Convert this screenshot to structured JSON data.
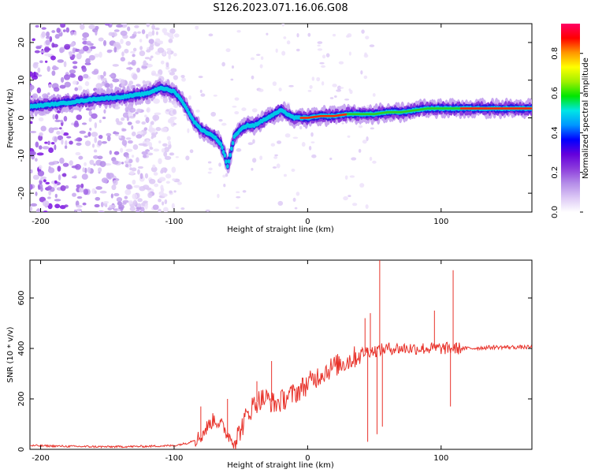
{
  "figure_title": "S126.2023.071.16.06.G08",
  "chart_data": [
    {
      "type": "heatmap",
      "title": "",
      "xlabel": "Height of straight line (km)",
      "ylabel": "Frequency (Hz)",
      "xlim": [
        -208,
        168
      ],
      "ylim": [
        -25,
        25
      ],
      "x_ticks": [
        -200,
        -100,
        0,
        100
      ],
      "y_ticks": [
        -20,
        -10,
        0,
        10,
        20
      ],
      "colorbar": {
        "label": "Normalized spectral amplitude",
        "range": [
          0,
          0.95
        ],
        "ticks": [
          0.0,
          0.2,
          0.4,
          0.6,
          0.8
        ],
        "colormap": [
          "#ffffff",
          "#dcc8f5",
          "#b48ce8",
          "#8c3cdc",
          "#6400dc",
          "#0000ff",
          "#0096ff",
          "#00e6e6",
          "#00e600",
          "#a0f000",
          "#ffff00",
          "#ff9600",
          "#ff0000",
          "#ff0064"
        ]
      },
      "ridge": {
        "x_km": [
          -208,
          -180,
          -160,
          -140,
          -120,
          -110,
          -100,
          -95,
          -90,
          -85,
          -80,
          -75,
          -70,
          -65,
          -62,
          -60,
          -55,
          -50,
          -45,
          -40,
          -35,
          -30,
          -25,
          -20,
          -15,
          -10,
          -5,
          0,
          10,
          20,
          30,
          40,
          50,
          60,
          70,
          80,
          90,
          100,
          110,
          120,
          140,
          168
        ],
        "freq_hz": [
          3,
          4,
          5,
          5.5,
          6.5,
          8,
          7,
          5,
          2,
          -1,
          -3,
          -4,
          -5,
          -7,
          -10,
          -13,
          -5,
          -3,
          -2,
          -2,
          -1,
          0,
          1,
          2,
          1,
          0,
          0,
          0,
          0.5,
          0.5,
          1,
          1,
          1,
          1.5,
          1.5,
          2,
          2.5,
          2.5,
          2.5,
          2.5,
          2.5,
          2.5
        ]
      }
    },
    {
      "type": "line",
      "title": "",
      "xlabel": "Height of straight line (km)",
      "ylabel": "SNR (10 * v/v)",
      "xlim": [
        -208,
        168
      ],
      "ylim": [
        0,
        750
      ],
      "x_ticks": [
        -200,
        -100,
        0,
        100
      ],
      "y_ticks": [
        0,
        200,
        400,
        600
      ],
      "color": "#e8322a",
      "series": [
        {
          "x": [
            -208,
            -180,
            -150,
            -120,
            -100,
            -90,
            -80,
            -75,
            -70,
            -65,
            -60,
            -55,
            -50,
            -45,
            -40,
            -35,
            -30,
            -25,
            -20,
            -15,
            -10,
            -5,
            0,
            5,
            10,
            20,
            30,
            40,
            45,
            50,
            55,
            60,
            70,
            80,
            90,
            100,
            105,
            110,
            115,
            120,
            140,
            168
          ],
          "y": [
            15,
            12,
            10,
            12,
            15,
            25,
            50,
            90,
            120,
            100,
            60,
            30,
            80,
            140,
            180,
            200,
            200,
            180,
            190,
            210,
            220,
            240,
            260,
            280,
            300,
            330,
            350,
            380,
            390,
            390,
            395,
            400,
            400,
            400,
            400,
            400,
            400,
            400,
            400,
            400,
            405,
            405
          ]
        }
      ],
      "spikes": [
        {
          "x": -80,
          "y": 170
        },
        {
          "x": -60,
          "y": 200
        },
        {
          "x": -38,
          "y": 270
        },
        {
          "x": -27,
          "y": 350
        },
        {
          "x": 43,
          "y": 520
        },
        {
          "x": 45,
          "y": 30
        },
        {
          "x": 47,
          "y": 540
        },
        {
          "x": 52,
          "y": 60
        },
        {
          "x": 54,
          "y": 750
        },
        {
          "x": 56,
          "y": 90
        },
        {
          "x": 95,
          "y": 550
        },
        {
          "x": 107,
          "y": 170
        },
        {
          "x": 109,
          "y": 710
        }
      ]
    }
  ]
}
